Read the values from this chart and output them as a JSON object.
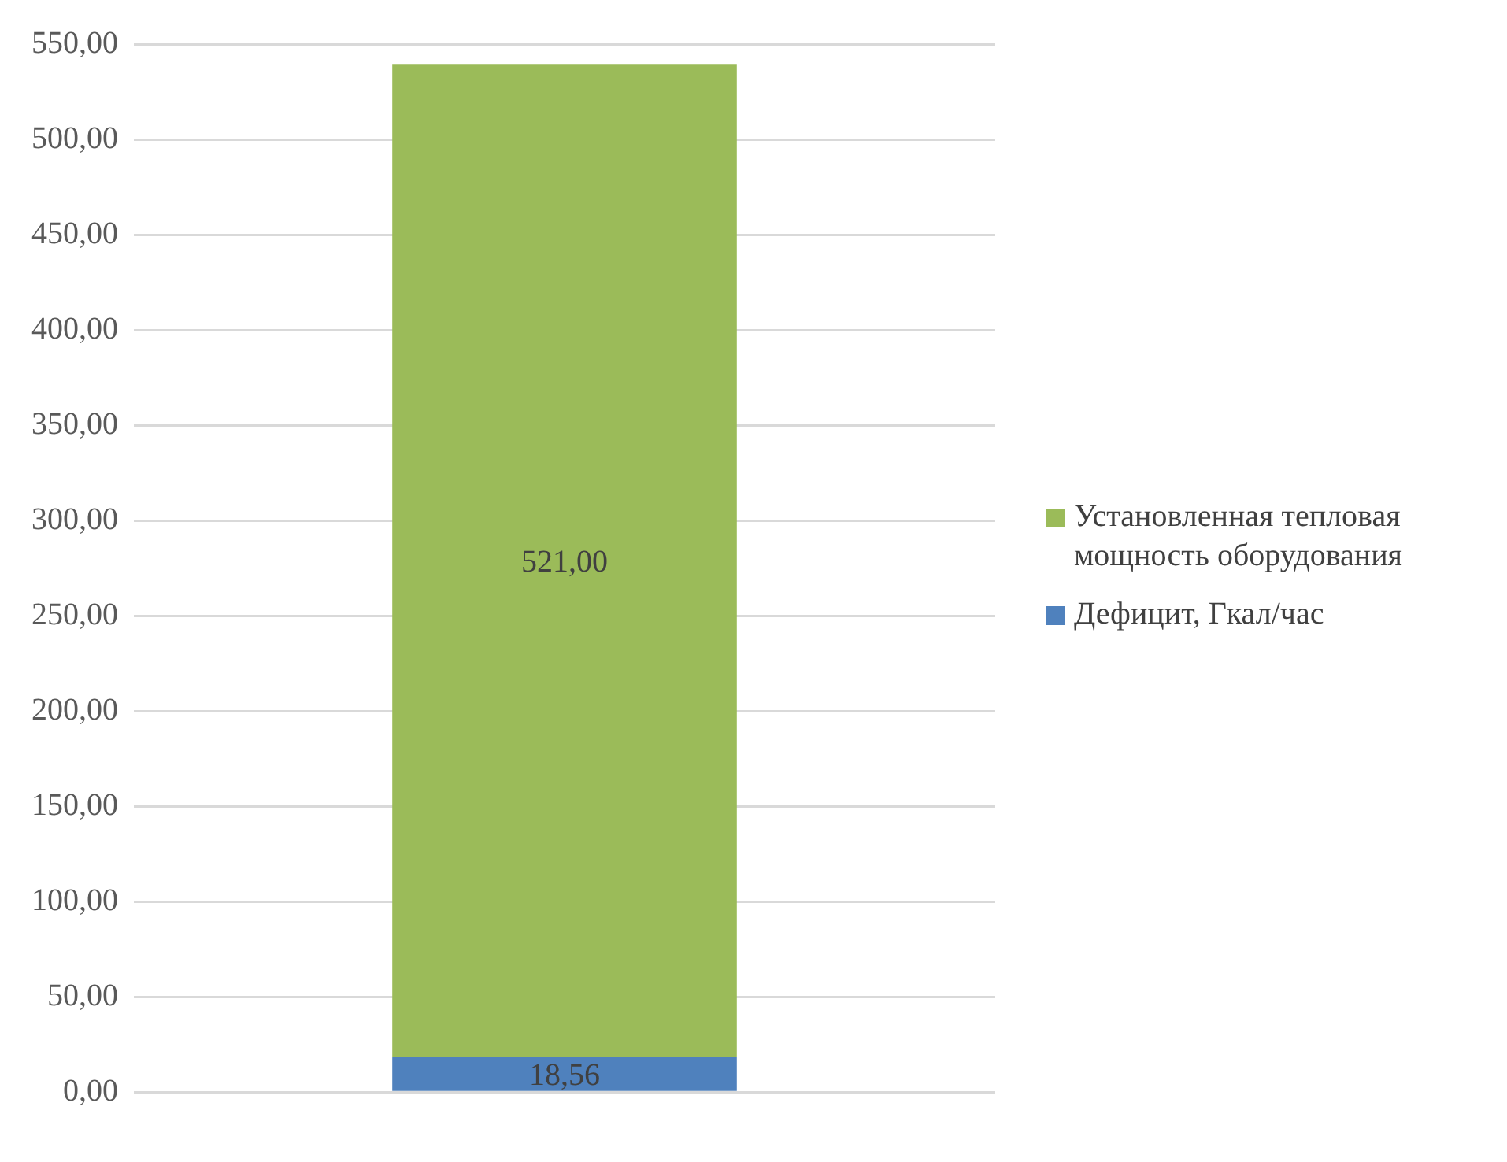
{
  "chart_data": {
    "type": "bar",
    "stacked": true,
    "categories": [
      null
    ],
    "series": [
      {
        "name": "Дефицит, Гкал/час",
        "color": "#4f81bd",
        "values": [
          18.56
        ],
        "value_labels": [
          "18,56"
        ]
      },
      {
        "name": "Установленная тепловая мощность оборудования",
        "color": "#9bbb59",
        "values": [
          521.0
        ],
        "value_labels": [
          "521,00"
        ]
      }
    ],
    "ylim": [
      0,
      550
    ],
    "yticks": [
      {
        "value": 0,
        "label": "0,00"
      },
      {
        "value": 50,
        "label": "50,00"
      },
      {
        "value": 100,
        "label": "100,00"
      },
      {
        "value": 150,
        "label": "150,00"
      },
      {
        "value": 200,
        "label": "200,00"
      },
      {
        "value": 250,
        "label": "250,00"
      },
      {
        "value": 300,
        "label": "300,00"
      },
      {
        "value": 350,
        "label": "350,00"
      },
      {
        "value": 400,
        "label": "400,00"
      },
      {
        "value": 450,
        "label": "450,00"
      },
      {
        "value": 500,
        "label": "500,00"
      },
      {
        "value": 550,
        "label": "550,00"
      }
    ],
    "grid": "y",
    "legend": "right"
  }
}
